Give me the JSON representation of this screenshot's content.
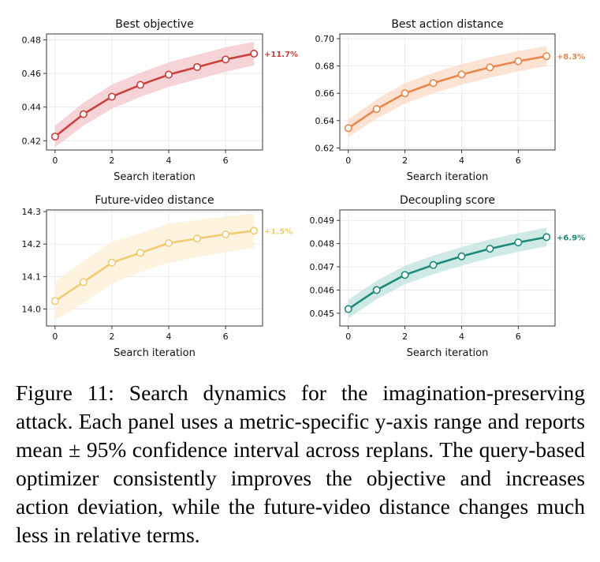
{
  "figure": {
    "caption_label": "Figure 11:",
    "caption_text": "Search dynamics for the imagination-preserving attack. Each panel uses a metric-specific y-axis range and reports mean ± 95% confidence interval across replans. The query-based optimizer consistently improves the objective and increases action deviation, while the future-video distance changes much less in relative terms."
  },
  "chart_data": [
    {
      "type": "line",
      "title": "Best objective",
      "xlabel": "Search iteration",
      "ylabel": "",
      "x": [
        0,
        1,
        2,
        3,
        4,
        5,
        6,
        7
      ],
      "series": [
        {
          "values": [
            0.4225,
            0.4358,
            0.4462,
            0.4532,
            0.4593,
            0.4638,
            0.4683,
            0.4718
          ],
          "ci_lower": [
            0.416,
            0.429,
            0.439,
            0.446,
            0.452,
            0.4565,
            0.461,
            0.4648
          ],
          "ci_upper": [
            0.429,
            0.4426,
            0.4534,
            0.4604,
            0.4666,
            0.4711,
            0.4756,
            0.4788
          ]
        }
      ],
      "xticks": [
        0,
        2,
        4,
        6
      ],
      "yticks": [
        0.42,
        0.44,
        0.46,
        0.48
      ],
      "ytick_labels": [
        "0.42",
        "0.44",
        "0.46",
        "0.48"
      ],
      "xlim": [
        -0.3,
        7.3
      ],
      "ylim": [
        0.4145,
        0.4835
      ],
      "grid": true,
      "annotation": "+11.7%",
      "color": "#c8413c",
      "band_color": "#f2c4c8"
    },
    {
      "type": "line",
      "title": "Best action distance",
      "xlabel": "Search iteration",
      "ylabel": "",
      "x": [
        0,
        1,
        2,
        3,
        4,
        5,
        6,
        7
      ],
      "series": [
        {
          "values": [
            0.6345,
            0.6485,
            0.66,
            0.6675,
            0.6738,
            0.679,
            0.6835,
            0.6872
          ],
          "ci_lower": [
            0.628,
            0.6415,
            0.6525,
            0.66,
            0.6663,
            0.6715,
            0.676,
            0.68
          ],
          "ci_upper": [
            0.641,
            0.6555,
            0.6675,
            0.675,
            0.6813,
            0.6865,
            0.691,
            0.6944
          ]
        }
      ],
      "xticks": [
        0,
        2,
        4,
        6
      ],
      "yticks": [
        0.62,
        0.64,
        0.66,
        0.68,
        0.7
      ],
      "ytick_labels": [
        "0.62",
        "0.64",
        "0.66",
        "0.68",
        "0.70"
      ],
      "xlim": [
        -0.3,
        7.3
      ],
      "ylim": [
        0.6185,
        0.7035
      ],
      "grid": true,
      "annotation": "+8.3%",
      "color": "#e8884e",
      "band_color": "#fbd9c4"
    },
    {
      "type": "line",
      "title": "Future-video distance",
      "xlabel": "Search iteration",
      "ylabel": "",
      "x": [
        0,
        1,
        2,
        3,
        4,
        5,
        6,
        7
      ],
      "series": [
        {
          "values": [
            14.025,
            14.083,
            14.143,
            14.173,
            14.203,
            14.217,
            14.23,
            14.241
          ],
          "ci_lower": [
            13.965,
            14.018,
            14.078,
            14.113,
            14.143,
            14.16,
            14.175,
            14.188
          ],
          "ci_upper": [
            14.085,
            14.148,
            14.208,
            14.233,
            14.263,
            14.274,
            14.285,
            14.294
          ]
        }
      ],
      "xticks": [
        0,
        2,
        4,
        6
      ],
      "yticks": [
        14.0,
        14.1,
        14.2,
        14.3
      ],
      "ytick_labels": [
        "14.0",
        "14.1",
        "14.2",
        "14.3"
      ],
      "xlim": [
        -0.3,
        7.3
      ],
      "ylim": [
        13.948,
        14.305
      ],
      "grid": true,
      "annotation": "+1.5%",
      "color": "#f2cb72",
      "band_color": "#fdefd4"
    },
    {
      "type": "line",
      "title": "Decoupling score",
      "xlabel": "Search iteration",
      "ylabel": "",
      "x": [
        0,
        1,
        2,
        3,
        4,
        5,
        6,
        7
      ],
      "series": [
        {
          "values": [
            0.04518,
            0.046,
            0.04665,
            0.04708,
            0.04745,
            0.04778,
            0.04805,
            0.04828
          ],
          "ci_lower": [
            0.04478,
            0.0456,
            0.04625,
            0.04668,
            0.04705,
            0.04738,
            0.04765,
            0.04788
          ],
          "ci_upper": [
            0.04558,
            0.0464,
            0.04705,
            0.04748,
            0.04785,
            0.04818,
            0.04845,
            0.04868
          ]
        }
      ],
      "xticks": [
        0,
        2,
        4,
        6
      ],
      "yticks": [
        0.045,
        0.046,
        0.047,
        0.048,
        0.049
      ],
      "ytick_labels": [
        "0.045",
        "0.046",
        "0.047",
        "0.048",
        "0.049"
      ],
      "xlim": [
        -0.3,
        7.3
      ],
      "ylim": [
        0.04445,
        0.04945
      ],
      "grid": true,
      "annotation": "+6.9%",
      "color": "#1f8a7a",
      "band_color": "#bfe3dc"
    }
  ]
}
